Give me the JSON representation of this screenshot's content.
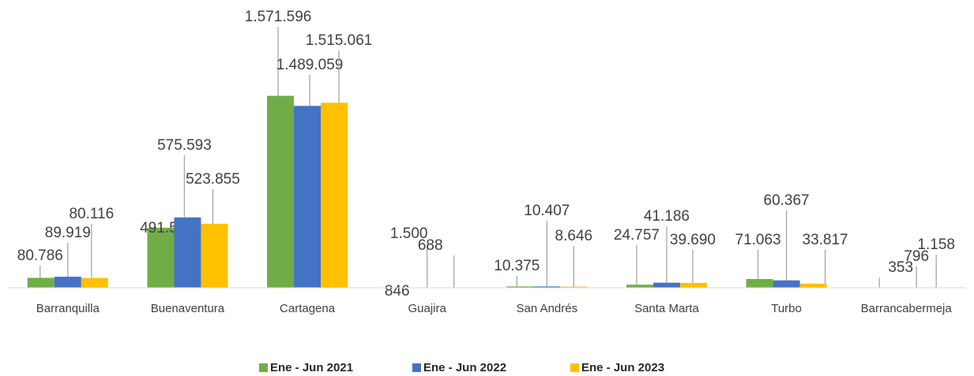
{
  "chart_data": {
    "type": "bar",
    "categories": [
      "Barranquilla",
      "Buenaventura",
      "Cartagena",
      "Guajira",
      "San Andrés",
      "Santa Marta",
      "Turbo",
      "Barrancabermeja"
    ],
    "series": [
      {
        "name": "Ene - Jun 2021",
        "color": "#70ad47",
        "values": [
          80786,
          491551,
          1571596,
          846,
          10375,
          24757,
          71063,
          353
        ],
        "value_labels": [
          "80.786",
          "491.551",
          "1.571.596",
          "846",
          "10.375",
          "24.757",
          "71.063",
          "353"
        ]
      },
      {
        "name": "Ene - Jun 2022",
        "color": "#4472c4",
        "values": [
          89919,
          575593,
          1489059,
          1500,
          10407,
          41186,
          60367,
          796
        ],
        "value_labels": [
          "89.919",
          "575.593",
          "1.489.059",
          "1.500",
          "10.407",
          "41.186",
          "60.367",
          "796"
        ]
      },
      {
        "name": "Ene - Jun 2023",
        "color": "#ffc000",
        "values": [
          80116,
          523855,
          1515061,
          688,
          8646,
          39690,
          33817,
          1158
        ],
        "value_labels": [
          "80.116",
          "523.855",
          "1.515.061",
          "688",
          "8.646",
          "39.690",
          "33.817",
          "1.158"
        ]
      }
    ],
    "ylim": [
      0,
      2350000
    ],
    "legend": "bottom"
  }
}
